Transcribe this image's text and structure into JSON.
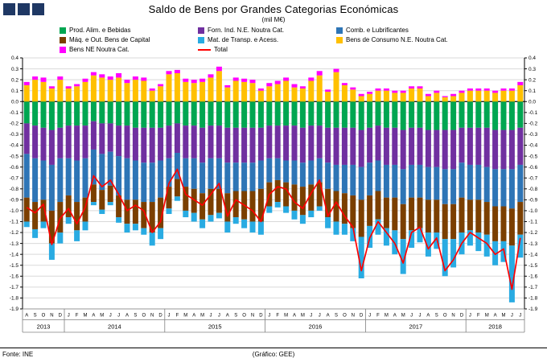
{
  "header": {
    "title": "Saldo de Bens por Grandes Categorias Económicas",
    "subtitle": "(mil M€)"
  },
  "footer": {
    "source": "Fonte: INE",
    "credit": "(Gráfico: GEE)"
  },
  "chart_data": {
    "type": "bar",
    "stacked": true,
    "title": "Saldo de Bens por Grandes Categorias Económicas",
    "subtitle": "(mil M€)",
    "ylabel": "",
    "xlabel": "",
    "ylim": [
      -1.9,
      0.4
    ],
    "ytick_step": 0.1,
    "grid": true,
    "legend_position": "top",
    "x_months": [
      "A",
      "S",
      "O",
      "N",
      "D",
      "J",
      "F",
      "M",
      "A",
      "M",
      "J",
      "J",
      "A",
      "S",
      "O",
      "N",
      "D",
      "J",
      "F",
      "M",
      "A",
      "M",
      "J",
      "J",
      "A",
      "S",
      "O",
      "N",
      "D",
      "J",
      "F",
      "M",
      "A",
      "M",
      "J",
      "J",
      "A",
      "S",
      "O",
      "N",
      "D",
      "J",
      "F",
      "M",
      "A",
      "M",
      "J",
      "J",
      "A",
      "S",
      "O",
      "N",
      "D",
      "J",
      "F",
      "M",
      "A",
      "M",
      "J",
      "J"
    ],
    "year_groups": [
      {
        "label": "2013",
        "months": 5
      },
      {
        "label": "2014",
        "months": 12
      },
      {
        "label": "2015",
        "months": 12
      },
      {
        "label": "2016",
        "months": 12
      },
      {
        "label": "2017",
        "months": 12
      },
      {
        "label": "2018",
        "months": 7
      }
    ],
    "series": [
      {
        "name": "Prod. Alim. e Bebidas",
        "color": "#00A651",
        "values": [
          -0.2,
          -0.22,
          -0.24,
          -0.26,
          -0.24,
          -0.22,
          -0.22,
          -0.22,
          -0.18,
          -0.2,
          -0.2,
          -0.22,
          -0.22,
          -0.24,
          -0.24,
          -0.24,
          -0.24,
          -0.22,
          -0.2,
          -0.22,
          -0.22,
          -0.24,
          -0.22,
          -0.22,
          -0.24,
          -0.24,
          -0.24,
          -0.24,
          -0.24,
          -0.22,
          -0.22,
          -0.22,
          -0.22,
          -0.24,
          -0.22,
          -0.22,
          -0.24,
          -0.24,
          -0.24,
          -0.24,
          -0.26,
          -0.24,
          -0.22,
          -0.24,
          -0.24,
          -0.26,
          -0.24,
          -0.24,
          -0.26,
          -0.26,
          -0.26,
          -0.26,
          -0.24,
          -0.24,
          -0.24,
          -0.24,
          -0.26,
          -0.26,
          -0.26,
          -0.24
        ]
      },
      {
        "name": "Forn. Ind. N.E. Noutra Cat.",
        "color": "#7030A0",
        "values": [
          -0.28,
          -0.3,
          -0.3,
          -0.32,
          -0.28,
          -0.3,
          -0.32,
          -0.3,
          -0.26,
          -0.28,
          -0.26,
          -0.28,
          -0.3,
          -0.3,
          -0.32,
          -0.32,
          -0.3,
          -0.3,
          -0.27,
          -0.3,
          -0.3,
          -0.32,
          -0.3,
          -0.3,
          -0.32,
          -0.32,
          -0.32,
          -0.32,
          -0.3,
          -0.3,
          -0.3,
          -0.32,
          -0.32,
          -0.32,
          -0.32,
          -0.3,
          -0.32,
          -0.34,
          -0.34,
          -0.34,
          -0.34,
          -0.32,
          -0.32,
          -0.34,
          -0.34,
          -0.36,
          -0.34,
          -0.34,
          -0.34,
          -0.34,
          -0.36,
          -0.36,
          -0.32,
          -0.34,
          -0.34,
          -0.36,
          -0.36,
          -0.36,
          -0.36,
          -0.34
        ]
      },
      {
        "name": "Comb. e Lubrificantes",
        "color": "#2E75B6",
        "values": [
          -0.4,
          -0.4,
          -0.36,
          -0.42,
          -0.4,
          -0.34,
          -0.38,
          -0.36,
          -0.32,
          -0.33,
          -0.31,
          -0.36,
          -0.38,
          -0.36,
          -0.36,
          -0.36,
          -0.34,
          -0.26,
          -0.24,
          -0.26,
          -0.28,
          -0.28,
          -0.28,
          -0.28,
          -0.28,
          -0.26,
          -0.26,
          -0.26,
          -0.26,
          -0.22,
          -0.2,
          -0.2,
          -0.22,
          -0.22,
          -0.22,
          -0.22,
          -0.24,
          -0.24,
          -0.26,
          -0.28,
          -0.3,
          -0.3,
          -0.28,
          -0.3,
          -0.3,
          -0.32,
          -0.3,
          -0.3,
          -0.3,
          -0.3,
          -0.32,
          -0.32,
          -0.32,
          -0.32,
          -0.32,
          -0.32,
          -0.34,
          -0.34,
          -0.36,
          -0.34
        ]
      },
      {
        "name": "Máq. e Out. Bens de Capital",
        "color": "#7B3F00",
        "values": [
          -0.22,
          -0.25,
          -0.2,
          -0.3,
          -0.28,
          -0.2,
          -0.26,
          -0.22,
          -0.16,
          -0.18,
          -0.15,
          -0.2,
          -0.22,
          -0.22,
          -0.24,
          -0.28,
          -0.28,
          -0.2,
          -0.16,
          -0.22,
          -0.22,
          -0.24,
          -0.24,
          -0.22,
          -0.26,
          -0.24,
          -0.26,
          -0.28,
          -0.3,
          -0.22,
          -0.2,
          -0.22,
          -0.24,
          -0.26,
          -0.24,
          -0.22,
          -0.26,
          -0.28,
          -0.28,
          -0.3,
          -0.34,
          -0.28,
          -0.26,
          -0.28,
          -0.3,
          -0.32,
          -0.3,
          -0.28,
          -0.3,
          -0.3,
          -0.32,
          -0.32,
          -0.32,
          -0.28,
          -0.3,
          -0.3,
          -0.32,
          -0.32,
          -0.34,
          -0.3
        ]
      },
      {
        "name": "Mat. de Transp. e Acess.",
        "color": "#29ABE2",
        "values": [
          -0.05,
          -0.08,
          -0.06,
          -0.15,
          -0.1,
          -0.06,
          -0.1,
          -0.08,
          -0.03,
          -0.04,
          -0.03,
          -0.05,
          -0.08,
          -0.06,
          -0.06,
          -0.12,
          -0.1,
          -0.05,
          -0.04,
          -0.06,
          -0.08,
          -0.08,
          -0.06,
          -0.05,
          -0.1,
          -0.06,
          -0.08,
          -0.1,
          -0.12,
          -0.06,
          -0.05,
          -0.06,
          -0.08,
          -0.08,
          -0.06,
          -0.04,
          -0.1,
          -0.12,
          -0.1,
          -0.12,
          -0.38,
          -0.2,
          -0.14,
          -0.16,
          -0.22,
          -0.32,
          -0.16,
          -0.13,
          -0.22,
          -0.15,
          -0.34,
          -0.26,
          -0.2,
          -0.14,
          -0.17,
          -0.2,
          -0.22,
          -0.19,
          -0.52,
          -0.21
        ]
      },
      {
        "name": "Bens de Consumo N.E. Noutra Cat.",
        "color": "#FFC000",
        "values": [
          0.15,
          0.2,
          0.18,
          0.12,
          0.2,
          0.12,
          0.14,
          0.18,
          0.24,
          0.22,
          0.2,
          0.22,
          0.17,
          0.2,
          0.19,
          0.1,
          0.14,
          0.25,
          0.26,
          0.18,
          0.17,
          0.18,
          0.22,
          0.28,
          0.13,
          0.19,
          0.18,
          0.17,
          0.1,
          0.14,
          0.16,
          0.19,
          0.13,
          0.12,
          0.19,
          0.24,
          0.09,
          0.27,
          0.15,
          0.11,
          0.05,
          0.07,
          0.1,
          0.1,
          0.08,
          0.08,
          0.12,
          0.12,
          0.05,
          0.08,
          0.04,
          0.05,
          0.08,
          0.1,
          0.1,
          0.1,
          0.08,
          0.1,
          0.1,
          0.15
        ]
      },
      {
        "name": "Bens NE Noutra Cat.",
        "color": "#FF00FF",
        "values": [
          0.03,
          0.03,
          0.04,
          0.02,
          0.03,
          0.02,
          0.02,
          0.03,
          0.03,
          0.03,
          0.03,
          0.04,
          0.03,
          0.03,
          0.03,
          0.02,
          0.02,
          0.03,
          0.03,
          0.03,
          0.03,
          0.03,
          0.03,
          0.04,
          0.02,
          0.03,
          0.03,
          0.03,
          0.02,
          0.03,
          0.03,
          0.03,
          0.03,
          0.02,
          0.03,
          0.04,
          0.02,
          0.03,
          0.02,
          0.02,
          0.02,
          0.02,
          0.02,
          0.02,
          0.02,
          0.02,
          0.02,
          0.02,
          0.02,
          0.02,
          0.01,
          0.02,
          0.02,
          0.02,
          0.02,
          0.02,
          0.02,
          0.02,
          0.02,
          0.03
        ]
      }
    ],
    "total": {
      "name": "Total",
      "color": "#FF0000",
      "values": [
        -0.97,
        -1.02,
        -0.94,
        -1.31,
        -1.07,
        -0.98,
        -1.12,
        -0.97,
        -0.68,
        -0.78,
        -0.72,
        -0.85,
        -1.0,
        -0.95,
        -1.0,
        -1.2,
        -1.1,
        -0.75,
        -0.62,
        -0.85,
        -0.9,
        -0.95,
        -0.85,
        -0.75,
        -1.05,
        -0.9,
        -0.95,
        -1.0,
        -1.1,
        -0.85,
        -0.78,
        -0.8,
        -0.92,
        -0.98,
        -0.84,
        -0.72,
        -1.05,
        -0.92,
        -1.05,
        -1.15,
        -1.55,
        -1.25,
        -1.1,
        -1.2,
        -1.3,
        -1.48,
        -1.2,
        -1.15,
        -1.35,
        -1.25,
        -1.55,
        -1.45,
        -1.3,
        -1.2,
        -1.25,
        -1.3,
        -1.4,
        -1.35,
        -1.72,
        -1.25
      ]
    }
  }
}
